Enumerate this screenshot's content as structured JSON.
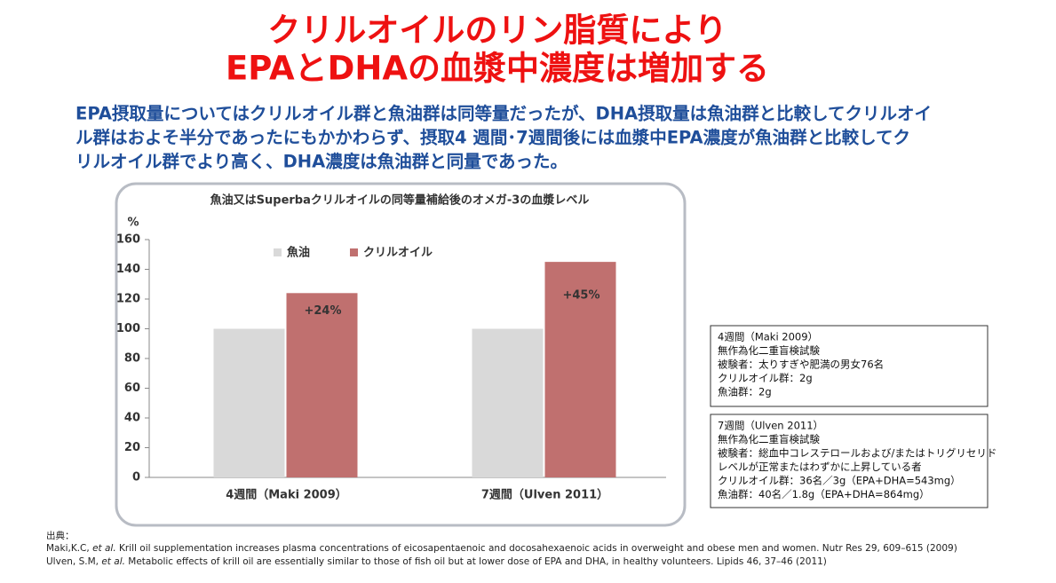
{
  "header": {
    "title_lines": [
      "クリルオイルのリン脂質により",
      "EPAとDHAの血漿中濃度は増加する"
    ]
  },
  "lead_lines": [
    "EPA摂取量についてはクリルオイル群と魚油群は同等量だったが、DHA摂取量は魚油群と比較してクリルオイ",
    "ル群はおよそ半分であったにもかかわらず、摂取4 週間･7週間後には血漿中EPA濃度が魚油群と比較してク",
    "リルオイル群でより高く、DHA濃度は魚油群と同量であった。"
  ],
  "chart_data": {
    "type": "bar",
    "title": "魚油又はSuperbaクリルオイルの同等量補給後のオメガ-3の血漿レベル",
    "y_label": "%",
    "categories": [
      "4週間（Maki 2009）",
      "7週間（Ulven 2011）"
    ],
    "series": [
      {
        "name": "魚油",
        "color": "#d9d9d9",
        "values": [
          100,
          100
        ]
      },
      {
        "name": "クリルオイル",
        "color": "#c0706f",
        "values": [
          124,
          145
        ]
      }
    ],
    "annotations": [
      "+24%",
      "+45%"
    ],
    "ylim": [
      0,
      160
    ],
    "yticks": [
      0,
      20,
      40,
      60,
      80,
      100,
      120,
      140,
      160
    ],
    "grid": false
  },
  "notes": [
    [
      "4週間（Maki 2009）",
      "無作為化二重盲検試験",
      "被験者：太りすぎや肥満の男女76名",
      "クリルオイル群：2g",
      "魚油群：2g"
    ],
    [
      "7週間（Ulven 2011）",
      "無作為化二重盲検試験",
      "被験者：総血中コレステロールおよび/またはトリグリセリド",
      "レベルが正常またはわずかに上昇している者",
      "クリルオイル群：36名／3g（EPA+DHA=543mg）",
      "魚油群：40名／1.8g（EPA+DHA=864mg）"
    ]
  ],
  "references": {
    "label": "出典：",
    "items": [
      {
        "authors": "Maki,K.C, ",
        "etal": "et al.",
        "rest": " Krill oil supplementation increases plasma concentrations of eicosapentaenoic and docosahexaenoic acids in overweight and obese men and women. Nutr Res 29, 609–615 (2009)"
      },
      {
        "authors": "Ulven,  S.M, ",
        "etal": "et al.",
        "rest": " Metabolic effects of krill oil are essentially similar to those of fish oil but at lower dose of EPA and DHA, in healthy volunteers. Lipids 46, 37–46 (2011)"
      }
    ]
  }
}
